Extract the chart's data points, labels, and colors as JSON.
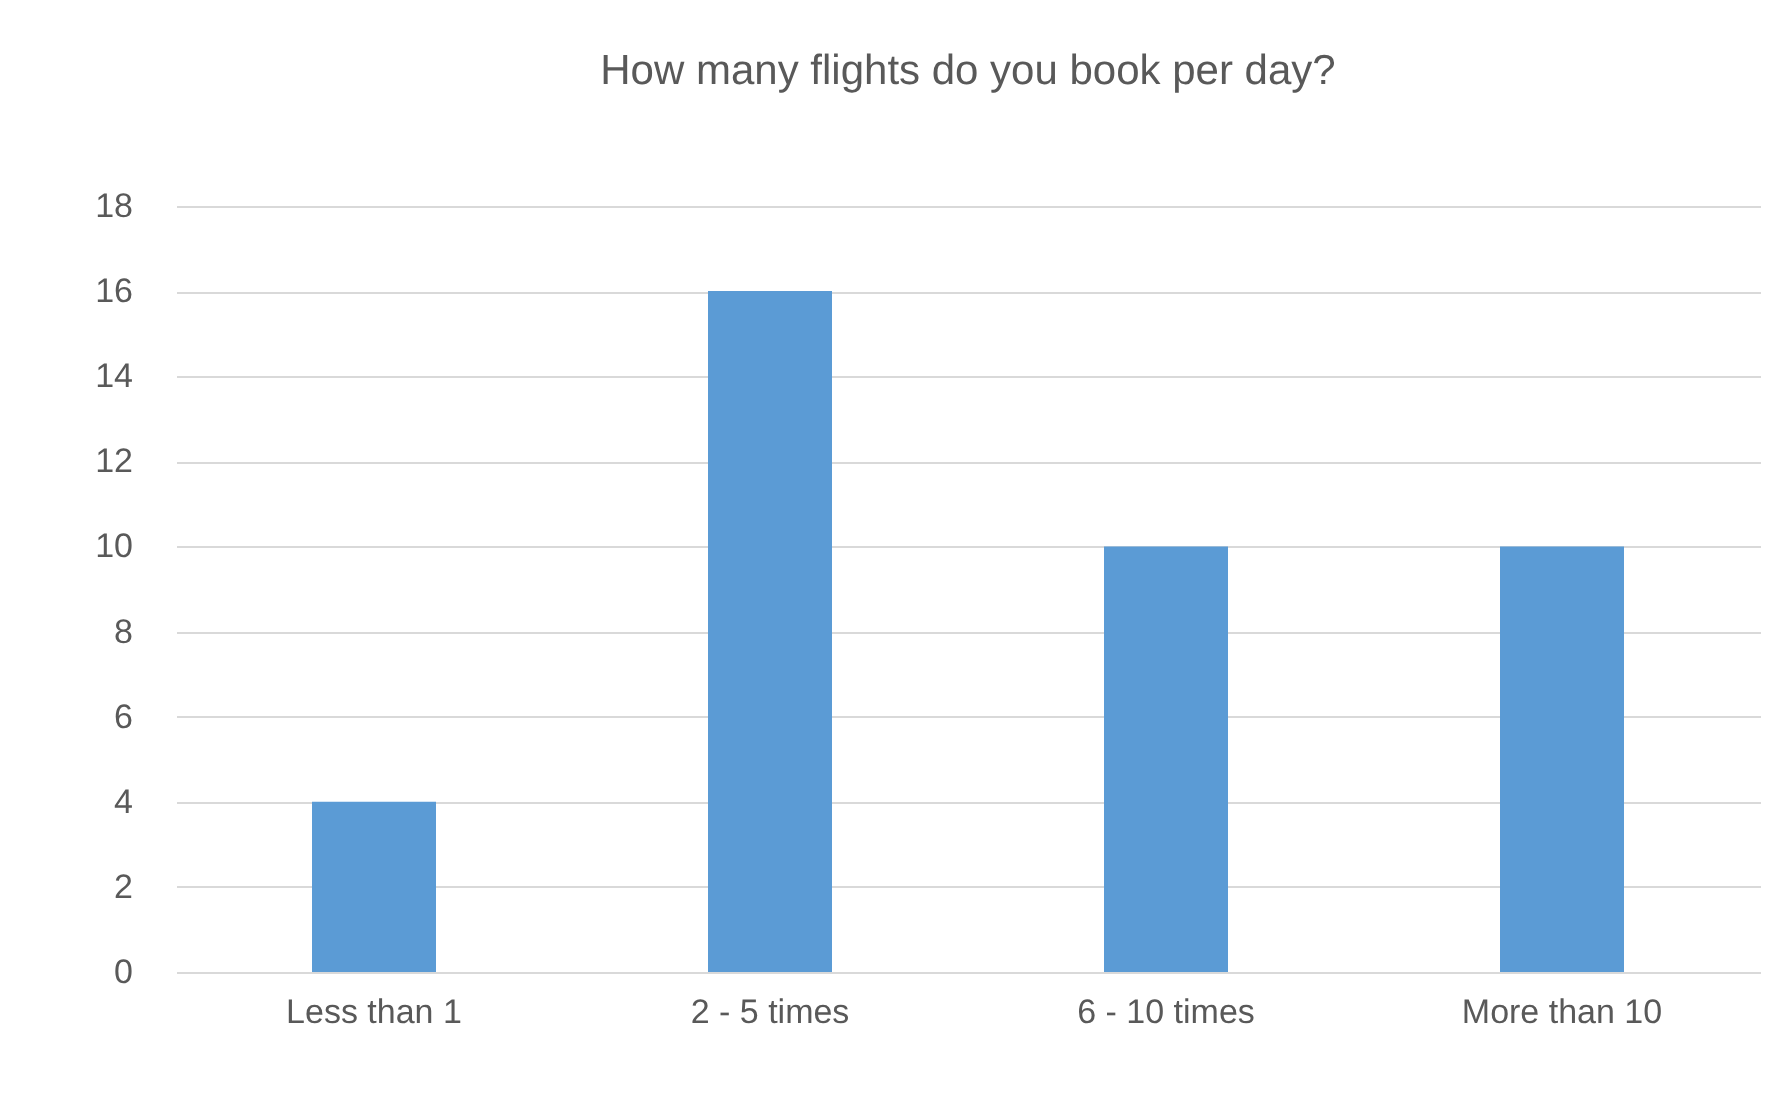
{
  "chart_data": {
    "type": "bar",
    "title": "How many flights do you book per day?",
    "categories": [
      "Less than 1",
      "2 - 5 times",
      "6 - 10 times",
      "More than 10"
    ],
    "values": [
      4,
      16,
      10,
      10
    ],
    "color": "#5b9bd5",
    "ylim": [
      0,
      18
    ],
    "yticks": [
      0,
      2,
      4,
      6,
      8,
      10,
      12,
      14,
      16,
      18
    ],
    "grid": "y"
  }
}
